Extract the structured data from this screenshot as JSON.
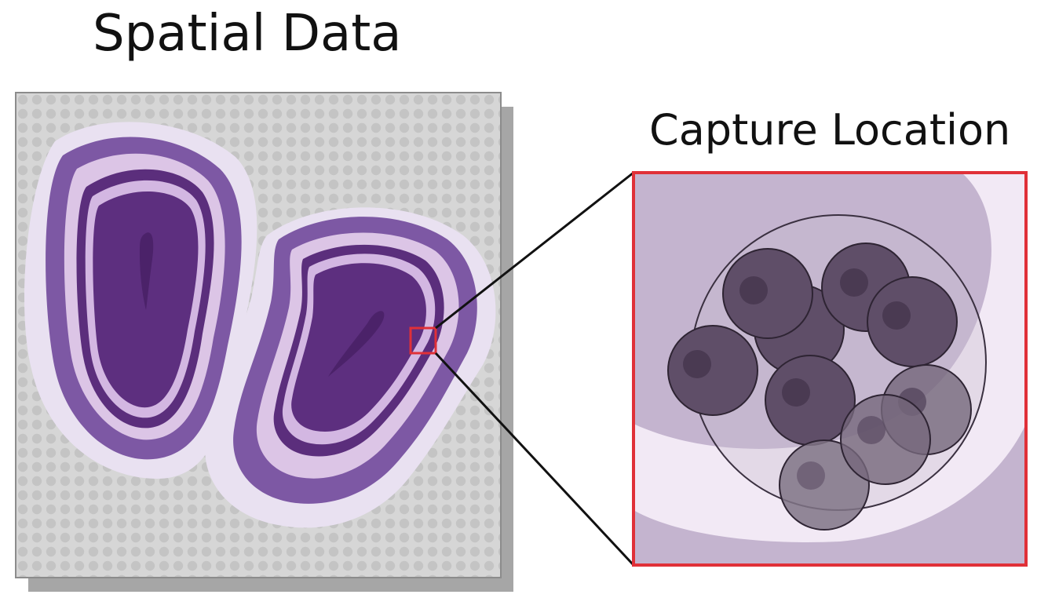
{
  "left_panel": {
    "title": "Spatial Data"
  },
  "right_panel": {
    "title": "Capture Location"
  },
  "colors": {
    "slide_background": "#d6d6d6",
    "spot": "#c4c4c4",
    "tissue_outer": "#e7dff0",
    "tissue_band": "#7d58a4",
    "tissue_light": "#dcc5e6",
    "tissue_core": "#5b2e7c",
    "highlight_box": "#e03038",
    "cell": "#5f4e68",
    "nucleus": "#4a3a52"
  }
}
